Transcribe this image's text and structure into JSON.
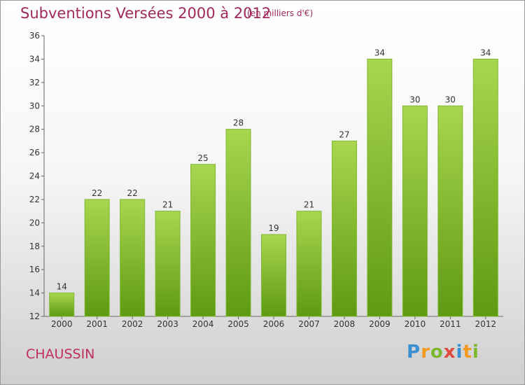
{
  "header": {
    "title": "Subventions Versées 2000 à 2012",
    "subtitle": "(en milliers d'€)"
  },
  "footer": {
    "city": "CHAUSSIN",
    "logo": {
      "p": "P",
      "r": "r",
      "o": "o",
      "x": "x",
      "i": "i",
      "t": "t",
      "i2": "i"
    }
  },
  "colors": {
    "title": "#a0285a",
    "bar_top": "#a8d64f",
    "bar_bottom": "#5e9a12"
  },
  "chart_data": {
    "type": "bar",
    "title": "Subventions Versées 2000 à 2012",
    "subtitle": "(en milliers d'€)",
    "categories": [
      "2000",
      "2001",
      "2002",
      "2003",
      "2004",
      "2005",
      "2006",
      "2007",
      "2008",
      "2009",
      "2010",
      "2011",
      "2012"
    ],
    "values": [
      14,
      22,
      22,
      21,
      25,
      28,
      19,
      21,
      27,
      34,
      30,
      30,
      34
    ],
    "ylim": [
      12,
      36
    ],
    "yticks": [
      12,
      14,
      16,
      18,
      20,
      22,
      24,
      26,
      28,
      30,
      32,
      34,
      36
    ],
    "grid": false,
    "legend": "none"
  }
}
